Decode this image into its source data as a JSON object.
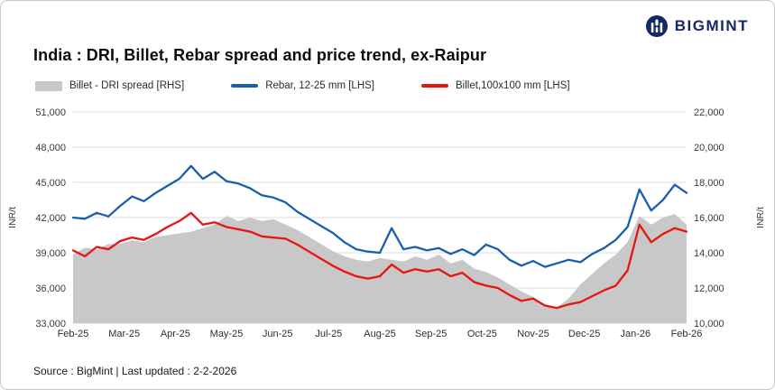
{
  "logo": {
    "brand": "BIGMINT"
  },
  "title": "India : DRI, Billet, Rebar spread and price trend, ex-Raipur",
  "footer": {
    "text": "Source : BigMint | Last updated : 2-2-2026"
  },
  "chart_data": {
    "type": "line",
    "title": "India : DRI, Billet, Rebar spread and price trend, ex-Raipur",
    "x_unit": "weekly points, Feb-2025 to Feb-2026",
    "categories": [
      "Feb-25",
      "Mar-25",
      "Apr-25",
      "May-25",
      "Jun-25",
      "Jul-25",
      "Aug-25",
      "Sep-25",
      "Oct-25",
      "Nov-25",
      "Dec-25",
      "Jan-26",
      "Feb-26"
    ],
    "grid": "horizontal",
    "legend_position": "top",
    "lhs_axis": {
      "label": "INR/t",
      "min": 33000,
      "max": 51000,
      "tick_step": 3000,
      "ticks": [
        33000,
        36000,
        39000,
        42000,
        45000,
        48000,
        51000
      ]
    },
    "rhs_axis": {
      "label": "INR/t",
      "min": 10000,
      "max": 22000,
      "tick_step": 2000,
      "ticks": [
        10000,
        12000,
        14000,
        16000,
        18000,
        20000,
        22000
      ]
    },
    "series": [
      {
        "name": "Billet - DRI spread  [RHS]",
        "type": "area",
        "axis": "rhs",
        "color": "#c8c8c8",
        "values": [
          13900,
          14300,
          14200,
          14500,
          14500,
          14700,
          14600,
          14900,
          15000,
          15100,
          15200,
          15400,
          15600,
          16100,
          15800,
          16000,
          15800,
          15900,
          15600,
          15300,
          14900,
          14500,
          14100,
          13800,
          13600,
          13500,
          13700,
          13600,
          13500,
          13800,
          13600,
          13900,
          13400,
          13600,
          13100,
          12900,
          12600,
          12200,
          11800,
          11500,
          11000,
          10900,
          11400,
          12200,
          12800,
          13400,
          13900,
          14600,
          16100,
          15600,
          16000,
          16200,
          15600
        ]
      },
      {
        "name": "Rebar, 12-25 mm [LHS]",
        "type": "line",
        "axis": "lhs",
        "color": "#1a5fae",
        "values": [
          42000,
          41900,
          42400,
          42100,
          43000,
          43800,
          43400,
          44100,
          44700,
          45300,
          46400,
          45300,
          45900,
          45100,
          44900,
          44500,
          43900,
          43700,
          43300,
          42500,
          41900,
          41300,
          40700,
          39900,
          39300,
          39100,
          39000,
          41100,
          39300,
          39500,
          39200,
          39400,
          38900,
          39300,
          38800,
          39700,
          39300,
          38400,
          37900,
          38300,
          37800,
          38100,
          38400,
          38200,
          38900,
          39400,
          40100,
          41200,
          44400,
          42600,
          43500,
          44800,
          44100
        ]
      },
      {
        "name": "Billet,100x100 mm [LHS]",
        "type": "line",
        "axis": "lhs",
        "color": "#e81410",
        "values": [
          39200,
          38700,
          39500,
          39300,
          40000,
          40300,
          40100,
          40600,
          41200,
          41700,
          42400,
          41400,
          41600,
          41200,
          41000,
          40800,
          40400,
          40300,
          40200,
          39700,
          39100,
          38500,
          37900,
          37400,
          37000,
          36800,
          37000,
          38000,
          37300,
          37600,
          37400,
          37600,
          37000,
          37300,
          36500,
          36200,
          36000,
          35400,
          34900,
          35100,
          34500,
          34300,
          34600,
          34800,
          35300,
          35800,
          36200,
          37500,
          41400,
          39900,
          40600,
          41100,
          40800
        ]
      }
    ]
  }
}
